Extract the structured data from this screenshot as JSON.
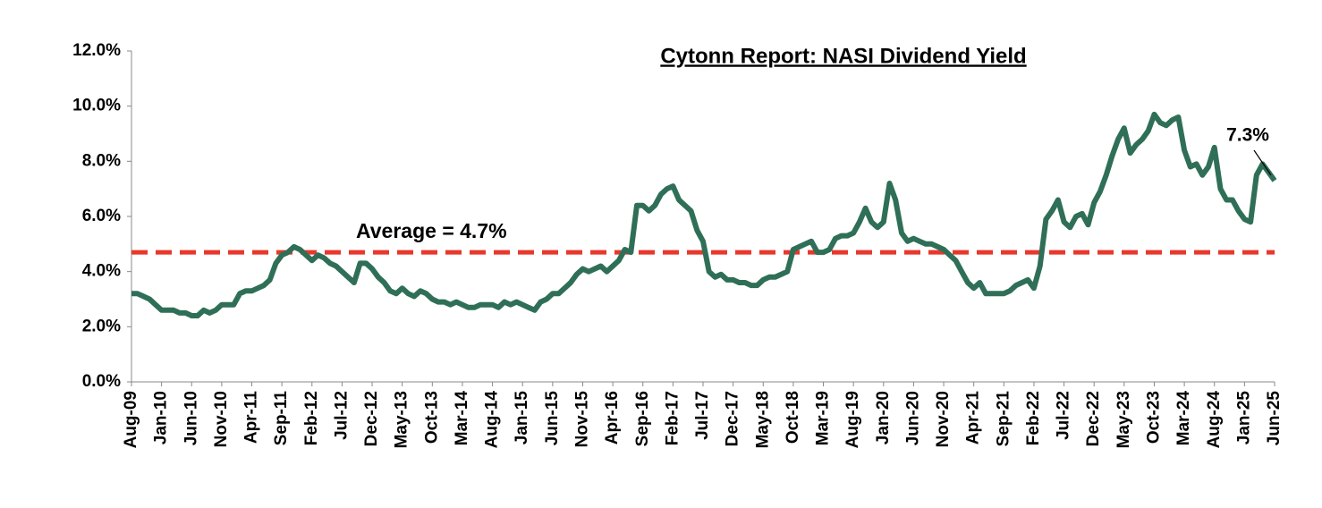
{
  "chart_data": {
    "type": "line",
    "title": "Cytonn Report: NASI Dividend Yield",
    "categories": [
      "Aug-09",
      null,
      null,
      null,
      null,
      "Jan-10",
      null,
      null,
      null,
      null,
      "Jun-10",
      null,
      null,
      null,
      null,
      "Nov-10",
      null,
      null,
      null,
      null,
      "Apr-11",
      null,
      null,
      null,
      null,
      "Sep-11",
      null,
      null,
      null,
      null,
      "Feb-12",
      null,
      null,
      null,
      null,
      "Jul-12",
      null,
      null,
      null,
      null,
      "Dec-12",
      null,
      null,
      null,
      null,
      "May-13",
      null,
      null,
      null,
      null,
      "Oct-13",
      null,
      null,
      null,
      null,
      "Mar-14",
      null,
      null,
      null,
      null,
      "Aug-14",
      null,
      null,
      null,
      null,
      "Jan-15",
      null,
      null,
      null,
      null,
      "Jun-15",
      null,
      null,
      null,
      null,
      "Nov-15",
      null,
      null,
      null,
      null,
      "Apr-16",
      null,
      null,
      null,
      null,
      "Sep-16",
      null,
      null,
      null,
      null,
      "Feb-17",
      null,
      null,
      null,
      null,
      "Jul-17",
      null,
      null,
      null,
      null,
      "Dec-17",
      null,
      null,
      null,
      null,
      "May-18",
      null,
      null,
      null,
      null,
      "Oct-18",
      null,
      null,
      null,
      null,
      "Mar-19",
      null,
      null,
      null,
      null,
      "Aug-19",
      null,
      null,
      null,
      null,
      "Jan-20",
      null,
      null,
      null,
      null,
      "Jun-20",
      null,
      null,
      null,
      null,
      "Nov-20",
      null,
      null,
      null,
      null,
      "Apr-21",
      null,
      null,
      null,
      null,
      "Sep-21",
      null,
      null,
      null,
      null,
      "Feb-22",
      null,
      null,
      null,
      null,
      "Jul-22",
      null,
      null,
      null,
      null,
      "Dec-22",
      null,
      null,
      null,
      null,
      "May-23",
      null,
      null,
      null,
      null,
      "Oct-23",
      null,
      null,
      null,
      null,
      "Mar-24",
      null,
      null,
      null,
      null,
      "Aug-24",
      null,
      null,
      null,
      null,
      "Jan-25",
      null,
      null,
      null,
      null,
      "Jun-25"
    ],
    "series": [
      {
        "name": "NASI Dividend Yield",
        "color": "#2f6f57",
        "values": [
          3.2,
          3.2,
          3.1,
          3.0,
          2.8,
          2.6,
          2.6,
          2.6,
          2.5,
          2.5,
          2.4,
          2.4,
          2.6,
          2.5,
          2.6,
          2.8,
          2.8,
          2.8,
          3.2,
          3.3,
          3.3,
          3.4,
          3.5,
          3.7,
          4.3,
          4.6,
          4.7,
          4.9,
          4.8,
          4.6,
          4.4,
          4.6,
          4.5,
          4.3,
          4.2,
          4.0,
          3.8,
          3.6,
          4.3,
          4.3,
          4.1,
          3.8,
          3.6,
          3.3,
          3.2,
          3.4,
          3.2,
          3.1,
          3.3,
          3.2,
          3.0,
          2.9,
          2.9,
          2.8,
          2.9,
          2.8,
          2.7,
          2.7,
          2.8,
          2.8,
          2.8,
          2.7,
          2.9,
          2.8,
          2.9,
          2.8,
          2.7,
          2.6,
          2.9,
          3.0,
          3.2,
          3.2,
          3.4,
          3.6,
          3.9,
          4.1,
          4.0,
          4.1,
          4.2,
          4.0,
          4.2,
          4.4,
          4.8,
          4.7,
          6.4,
          6.4,
          6.2,
          6.4,
          6.8,
          7.0,
          7.1,
          6.6,
          6.4,
          6.2,
          5.5,
          5.1,
          4.0,
          3.8,
          3.9,
          3.7,
          3.7,
          3.6,
          3.6,
          3.5,
          3.5,
          3.7,
          3.8,
          3.8,
          3.9,
          4.0,
          4.8,
          4.9,
          5.0,
          5.1,
          4.7,
          4.7,
          4.8,
          5.2,
          5.3,
          5.3,
          5.4,
          5.8,
          6.3,
          5.8,
          5.6,
          5.8,
          7.2,
          6.6,
          5.4,
          5.1,
          5.2,
          5.1,
          5.0,
          5.0,
          4.9,
          4.8,
          4.6,
          4.4,
          4.0,
          3.6,
          3.4,
          3.6,
          3.2,
          3.2,
          3.2,
          3.2,
          3.3,
          3.5,
          3.6,
          3.7,
          3.4,
          4.2,
          5.9,
          6.2,
          6.6,
          5.8,
          5.6,
          6.0,
          6.1,
          5.7,
          6.5,
          6.9,
          7.5,
          8.2,
          8.8,
          9.2,
          8.3,
          8.6,
          8.8,
          9.1,
          9.7,
          9.4,
          9.3,
          9.5,
          9.6,
          8.4,
          7.8,
          7.9,
          7.5,
          7.8,
          8.5,
          7.0,
          6.6,
          6.6,
          6.2,
          5.9,
          5.8,
          7.5,
          7.9,
          7.6,
          7.3
        ]
      }
    ],
    "average": {
      "value": 4.7,
      "label": "Average = 4.7%",
      "color": "#e8382c"
    },
    "annotation": "7.3%",
    "ylim": [
      0,
      12
    ],
    "yticks": [
      {
        "value": 0,
        "label": "0.0%"
      },
      {
        "value": 2,
        "label": "2.0%"
      },
      {
        "value": 4,
        "label": "4.0%"
      },
      {
        "value": 6,
        "label": "6.0%"
      },
      {
        "value": 8,
        "label": "8.0%"
      },
      {
        "value": 10,
        "label": "10.0%"
      },
      {
        "value": 12,
        "label": "12.0%"
      }
    ],
    "grid": false
  }
}
